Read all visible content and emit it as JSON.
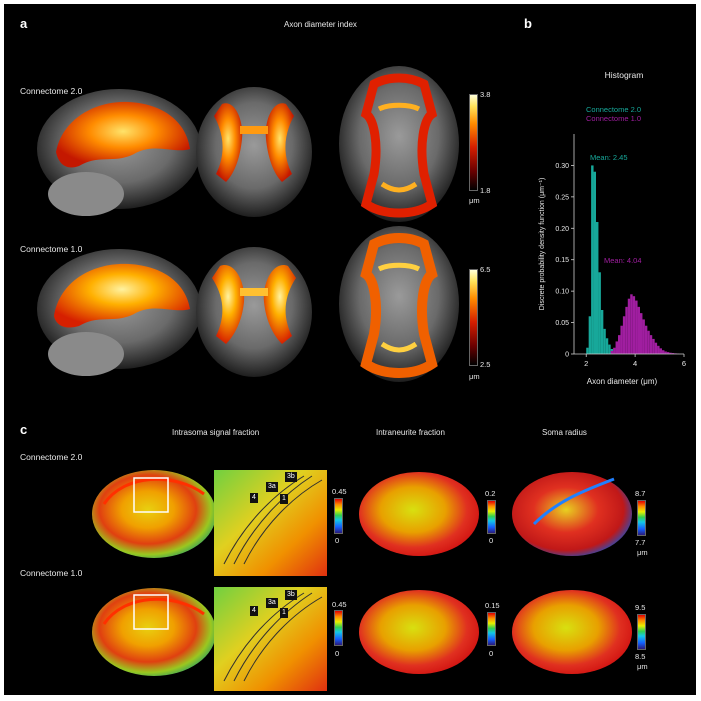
{
  "panels": {
    "a": {
      "letter": "a",
      "title": "Axon diameter index",
      "rows": [
        {
          "label": "Connectome 2.0",
          "cbar_max": "3.8",
          "cbar_min": "1.8",
          "unit": "μm"
        },
        {
          "label": "Connectome 1.0",
          "cbar_max": "6.5",
          "cbar_min": "2.5",
          "unit": "μm"
        }
      ]
    },
    "b": {
      "letter": "b",
      "title": "Histogram",
      "legend": [
        {
          "name": "Connectome 2.0",
          "color": "#17a89a"
        },
        {
          "name": "Connectome 1.0",
          "color": "#a01ea0"
        }
      ],
      "annotations": [
        {
          "text": "Mean: 2.45",
          "color": "#17a89a"
        },
        {
          "text": "Mean: 4.04",
          "color": "#a01ea0"
        }
      ]
    },
    "c": {
      "letter": "c",
      "titles": {
        "isf": "Intrasoma signal fraction",
        "inf": "Intraneurite fraction",
        "sr": "Soma radius"
      },
      "rows": [
        {
          "label": "Connectome 2.0",
          "isf_max": "0.45",
          "isf_min": "0",
          "inf_max": "0.2",
          "inf_min": "0",
          "sr_max": "8.7",
          "sr_min": "7.7",
          "unit": "μm"
        },
        {
          "label": "Connectome 1.0",
          "isf_max": "0.45",
          "isf_min": "0",
          "inf_max": "0.15",
          "inf_min": "0",
          "sr_max": "9.5",
          "sr_min": "8.5",
          "unit": "μm"
        }
      ],
      "region_labels": [
        "4",
        "3a",
        "3b",
        "1"
      ]
    }
  },
  "chart_data": {
    "type": "bar",
    "title": "Histogram",
    "xlabel": "Axon diameter (μm)",
    "ylabel": "Discrete probability density function (μm⁻¹)",
    "xlim": [
      1.5,
      6
    ],
    "ylim": [
      0,
      0.35
    ],
    "xticks": [
      "2",
      "4",
      "6"
    ],
    "yticks": [
      "0",
      "0.05",
      "0.10",
      "0.15",
      "0.20",
      "0.25",
      "0.30"
    ],
    "bin_width": 0.1,
    "legend_position": "top-right",
    "series": [
      {
        "name": "Connectome 2.0",
        "color": "#17a89a",
        "x": [
          2.0,
          2.1,
          2.2,
          2.3,
          2.4,
          2.5,
          2.6,
          2.7,
          2.8,
          2.9,
          3.0,
          3.1
        ],
        "values": [
          0.01,
          0.06,
          0.3,
          0.29,
          0.21,
          0.13,
          0.07,
          0.04,
          0.025,
          0.015,
          0.008,
          0.003
        ]
      },
      {
        "name": "Connectome 1.0",
        "color": "#a01ea0",
        "x": [
          3.0,
          3.1,
          3.2,
          3.3,
          3.4,
          3.5,
          3.6,
          3.7,
          3.8,
          3.9,
          4.0,
          4.1,
          4.2,
          4.3,
          4.4,
          4.5,
          4.6,
          4.7,
          4.8,
          4.9,
          5.0,
          5.1,
          5.2,
          5.3,
          5.4,
          5.5,
          5.6,
          5.7
        ],
        "values": [
          0.005,
          0.01,
          0.02,
          0.03,
          0.045,
          0.06,
          0.075,
          0.088,
          0.095,
          0.092,
          0.085,
          0.075,
          0.065,
          0.055,
          0.045,
          0.037,
          0.03,
          0.024,
          0.018,
          0.013,
          0.009,
          0.006,
          0.004,
          0.003,
          0.002,
          0.0015,
          0.001,
          0.0005
        ]
      }
    ]
  }
}
